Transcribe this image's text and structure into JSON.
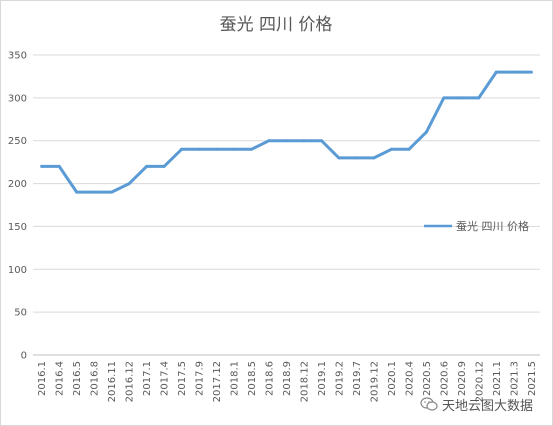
{
  "chart_data": {
    "type": "line",
    "title": "蚕光 四川 价格",
    "xlabel": "",
    "ylabel": "",
    "ylim": [
      0,
      350
    ],
    "yticks": [
      0,
      50,
      100,
      150,
      200,
      250,
      300,
      350
    ],
    "grid": true,
    "legend": "right",
    "categories": [
      "2016.1",
      "2016.4",
      "2016.5",
      "2016.8",
      "2016.11",
      "2016.12",
      "2017.1",
      "2017.4",
      "2017.5",
      "2017.9",
      "2017.12",
      "2018.1",
      "2018.5",
      "2018.6",
      "2018.9",
      "2018.12",
      "2019.1",
      "2019.2",
      "2019.7",
      "2019.12",
      "2020.1",
      "2020.4",
      "2020.5",
      "2020.6",
      "2020.9",
      "2020.12",
      "2021.1",
      "2021.3",
      "2021.5"
    ],
    "series": [
      {
        "name": "蚕光 四川 价格",
        "color": "#5b9bd5",
        "values": [
          220,
          220,
          190,
          190,
          190,
          200,
          220,
          220,
          240,
          240,
          240,
          240,
          240,
          250,
          250,
          250,
          250,
          230,
          230,
          230,
          240,
          240,
          260,
          300,
          300,
          300,
          330,
          330,
          330
        ]
      }
    ]
  },
  "watermark": {
    "text": "天地云图大数据",
    "icon": "wechat-icon"
  }
}
